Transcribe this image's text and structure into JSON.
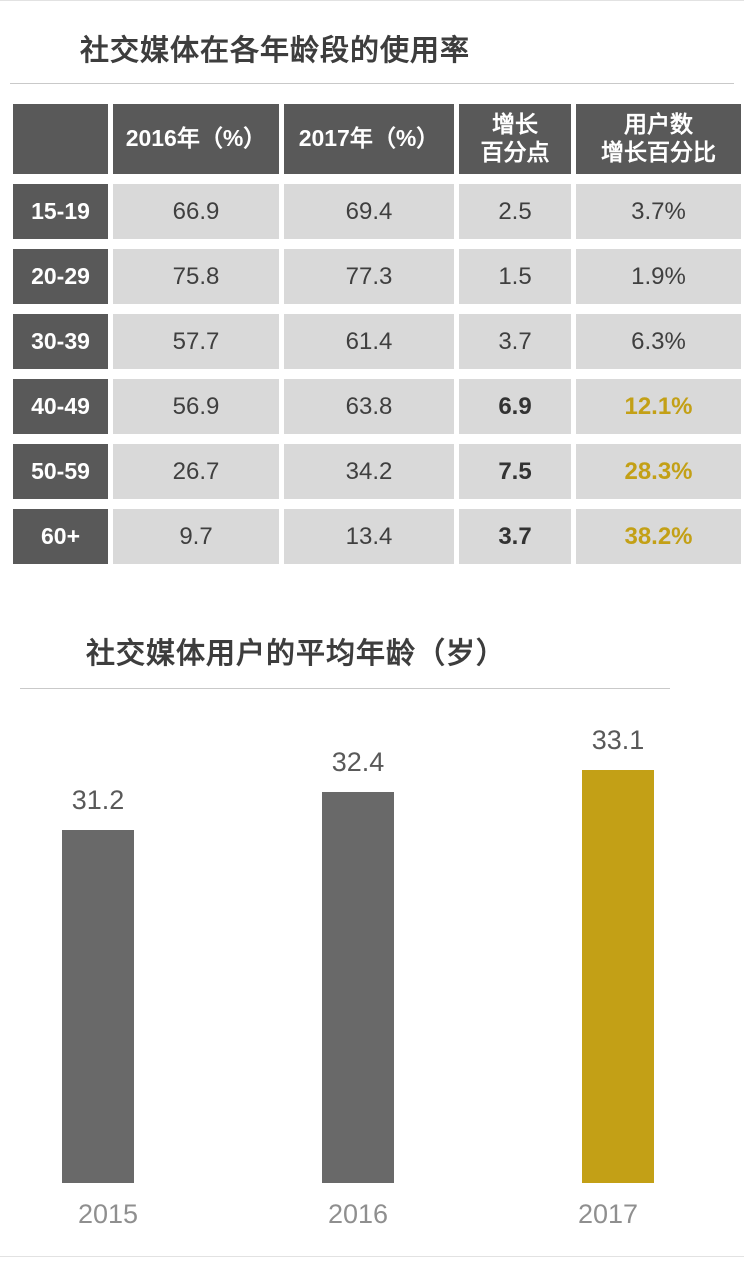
{
  "colors": {
    "accent_gold": "#C3A016",
    "bar_gray": "#696969",
    "header_bg": "#595959",
    "cell_bg": "#D9D9D9"
  },
  "chart_data": [
    {
      "type": "table",
      "title": "社交媒体在各年龄段的使用率",
      "columns": [
        "",
        "2016年（%）",
        "2017年（%）",
        "增长\n百分点",
        "用户数\n增长百分比"
      ],
      "rows": [
        {
          "age": "15-19",
          "y2016": "66.9",
          "y2017": "69.4",
          "growth": "2.5",
          "user_growth": "3.7%",
          "emphasis": false
        },
        {
          "age": "20-29",
          "y2016": "75.8",
          "y2017": "77.3",
          "growth": "1.5",
          "user_growth": "1.9%",
          "emphasis": false
        },
        {
          "age": "30-39",
          "y2016": "57.7",
          "y2017": "61.4",
          "growth": "3.7",
          "user_growth": "6.3%",
          "emphasis": false
        },
        {
          "age": "40-49",
          "y2016": "56.9",
          "y2017": "63.8",
          "growth": "6.9",
          "user_growth": "12.1%",
          "emphasis": true
        },
        {
          "age": "50-59",
          "y2016": "26.7",
          "y2017": "34.2",
          "growth": "7.5",
          "user_growth": "28.3%",
          "emphasis": true
        },
        {
          "age": "60+",
          "y2016": "9.7",
          "y2017": "13.4",
          "growth": "3.7",
          "user_growth": "38.2%",
          "emphasis": true
        }
      ]
    },
    {
      "type": "bar",
      "title": "社交媒体用户的平均年龄（岁）",
      "categories": [
        "2015",
        "2016",
        "2017"
      ],
      "values": [
        31.2,
        32.4,
        33.1
      ],
      "value_labels": [
        "31.2",
        "32.4",
        "33.1"
      ],
      "highlight_index": 2,
      "xlabel": "",
      "ylabel": "",
      "legend": "none",
      "grid": false
    }
  ]
}
